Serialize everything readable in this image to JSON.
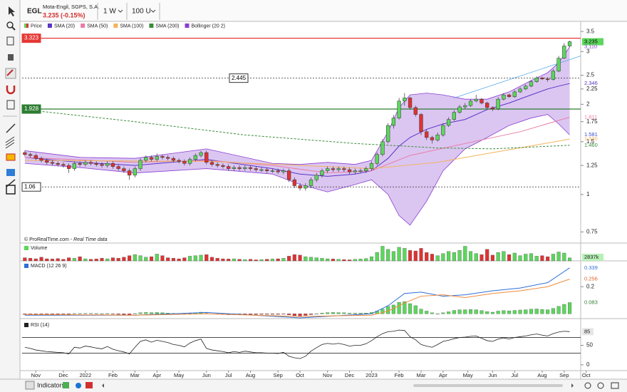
{
  "header": {
    "symbol": "EGL",
    "name": "Mota-Engil, SGPS, S.A.",
    "quote": "3.235 (-0.15%)",
    "period": "1 W",
    "units": "100 U"
  },
  "watermark": {
    "source": "© ProRealTime.com - ",
    "note": "Real Time data"
  },
  "toolbar": {
    "indicators": "Indicators"
  },
  "chart_data": {
    "type": "candlestick",
    "log_scale": true,
    "up_color": "#5cd65c",
    "down_color": "#e03232",
    "legend_price": "Price",
    "xlim": [
      -0.5,
      101
    ],
    "xticks": [
      {
        "value": 2,
        "label": "Nov"
      },
      {
        "value": 7,
        "label": "Dec"
      },
      {
        "value": 11,
        "label": "2022"
      },
      {
        "value": 16,
        "label": "Feb"
      },
      {
        "value": 20,
        "label": "Mar"
      },
      {
        "value": 24,
        "label": "Apr"
      },
      {
        "value": 28,
        "label": "May"
      },
      {
        "value": 33,
        "label": "Jun"
      },
      {
        "value": 37,
        "label": "Jul"
      },
      {
        "value": 41,
        "label": "Aug"
      },
      {
        "value": 46,
        "label": "Sep"
      },
      {
        "value": 50,
        "label": "Oct"
      },
      {
        "value": 55,
        "label": "Nov"
      },
      {
        "value": 59,
        "label": "Dec"
      },
      {
        "value": 63,
        "label": "2023"
      },
      {
        "value": 68,
        "label": "Feb"
      },
      {
        "value": 72,
        "label": "Mar"
      },
      {
        "value": 76,
        "label": "Apr"
      },
      {
        "value": 80.5,
        "label": "May"
      },
      {
        "value": 85,
        "label": "Jun"
      },
      {
        "value": 89,
        "label": "Jul"
      },
      {
        "value": 94,
        "label": "Aug"
      },
      {
        "value": 98,
        "label": "Sep"
      },
      {
        "value": 102,
        "label": "Oct"
      }
    ],
    "ylim": [
      0.7,
      3.66
    ],
    "yticks": [
      3.5,
      3,
      2.5,
      2.25,
      2,
      1.75,
      1.5,
      1.25,
      1,
      0.75
    ],
    "candles": [
      [
        1.38,
        1.4,
        1.34,
        1.36
      ],
      [
        1.36,
        1.38,
        1.33,
        1.35
      ],
      [
        1.35,
        1.37,
        1.3,
        1.32
      ],
      [
        1.32,
        1.34,
        1.28,
        1.3
      ],
      [
        1.3,
        1.32,
        1.26,
        1.28
      ],
      [
        1.28,
        1.3,
        1.25,
        1.27
      ],
      [
        1.27,
        1.29,
        1.24,
        1.26
      ],
      [
        1.26,
        1.28,
        1.23,
        1.25
      ],
      [
        1.25,
        1.27,
        1.18,
        1.22
      ],
      [
        1.22,
        1.29,
        1.2,
        1.27
      ],
      [
        1.27,
        1.29,
        1.24,
        1.26
      ],
      [
        1.26,
        1.3,
        1.24,
        1.28
      ],
      [
        1.28,
        1.3,
        1.25,
        1.27
      ],
      [
        1.27,
        1.29,
        1.24,
        1.26
      ],
      [
        1.26,
        1.28,
        1.23,
        1.25
      ],
      [
        1.25,
        1.29,
        1.23,
        1.27
      ],
      [
        1.27,
        1.29,
        1.22,
        1.24
      ],
      [
        1.24,
        1.26,
        1.2,
        1.22
      ],
      [
        1.22,
        1.24,
        1.18,
        1.2
      ],
      [
        1.2,
        1.22,
        1.12,
        1.16
      ],
      [
        1.16,
        1.24,
        1.14,
        1.22
      ],
      [
        1.22,
        1.32,
        1.2,
        1.3
      ],
      [
        1.3,
        1.35,
        1.28,
        1.33
      ],
      [
        1.33,
        1.35,
        1.29,
        1.31
      ],
      [
        1.31,
        1.37,
        1.29,
        1.34
      ],
      [
        1.34,
        1.36,
        1.31,
        1.33
      ],
      [
        1.33,
        1.35,
        1.3,
        1.32
      ],
      [
        1.32,
        1.34,
        1.28,
        1.3
      ],
      [
        1.3,
        1.32,
        1.27,
        1.29
      ],
      [
        1.29,
        1.31,
        1.25,
        1.27
      ],
      [
        1.27,
        1.33,
        1.25,
        1.31
      ],
      [
        1.31,
        1.37,
        1.29,
        1.35
      ],
      [
        1.35,
        1.4,
        1.33,
        1.38
      ],
      [
        1.38,
        1.4,
        1.26,
        1.28
      ],
      [
        1.28,
        1.3,
        1.24,
        1.26
      ],
      [
        1.26,
        1.28,
        1.23,
        1.25
      ],
      [
        1.25,
        1.27,
        1.22,
        1.24
      ],
      [
        1.24,
        1.26,
        1.2,
        1.22
      ],
      [
        1.22,
        1.25,
        1.2,
        1.23
      ],
      [
        1.23,
        1.25,
        1.2,
        1.22
      ],
      [
        1.22,
        1.25,
        1.2,
        1.23
      ],
      [
        1.23,
        1.25,
        1.2,
        1.22
      ],
      [
        1.22,
        1.24,
        1.19,
        1.21
      ],
      [
        1.21,
        1.23,
        1.19,
        1.21
      ],
      [
        1.21,
        1.23,
        1.18,
        1.2
      ],
      [
        1.2,
        1.22,
        1.18,
        1.2
      ],
      [
        1.2,
        1.22,
        1.17,
        1.19
      ],
      [
        1.19,
        1.22,
        1.17,
        1.2
      ],
      [
        1.2,
        1.22,
        1.1,
        1.12
      ],
      [
        1.12,
        1.14,
        1.05,
        1.07
      ],
      [
        1.07,
        1.09,
        1.03,
        1.05
      ],
      [
        1.05,
        1.09,
        1.03,
        1.07
      ],
      [
        1.07,
        1.14,
        1.05,
        1.12
      ],
      [
        1.12,
        1.18,
        1.1,
        1.16
      ],
      [
        1.16,
        1.22,
        1.14,
        1.2
      ],
      [
        1.2,
        1.24,
        1.18,
        1.22
      ],
      [
        1.22,
        1.24,
        1.19,
        1.21
      ],
      [
        1.21,
        1.24,
        1.19,
        1.22
      ],
      [
        1.22,
        1.24,
        1.19,
        1.21
      ],
      [
        1.21,
        1.23,
        1.17,
        1.19
      ],
      [
        1.19,
        1.22,
        1.17,
        1.2
      ],
      [
        1.2,
        1.22,
        1.18,
        1.2
      ],
      [
        1.2,
        1.24,
        1.18,
        1.22
      ],
      [
        1.22,
        1.29,
        1.2,
        1.27
      ],
      [
        1.27,
        1.38,
        1.25,
        1.36
      ],
      [
        1.36,
        1.53,
        1.34,
        1.5
      ],
      [
        1.5,
        1.73,
        1.48,
        1.7
      ],
      [
        1.7,
        1.84,
        1.66,
        1.8
      ],
      [
        1.8,
        2.1,
        1.78,
        2.05
      ],
      [
        2.05,
        2.18,
        1.98,
        2.1
      ],
      [
        2.1,
        2.12,
        1.92,
        1.95
      ],
      [
        1.95,
        1.98,
        1.82,
        1.85
      ],
      [
        1.85,
        1.87,
        1.58,
        1.62
      ],
      [
        1.62,
        1.65,
        1.52,
        1.55
      ],
      [
        1.55,
        1.57,
        1.48,
        1.52
      ],
      [
        1.52,
        1.61,
        1.5,
        1.58
      ],
      [
        1.58,
        1.73,
        1.56,
        1.7
      ],
      [
        1.7,
        1.81,
        1.68,
        1.78
      ],
      [
        1.78,
        1.91,
        1.76,
        1.88
      ],
      [
        1.88,
        1.99,
        1.86,
        1.96
      ],
      [
        1.96,
        2.02,
        1.93,
        1.98
      ],
      [
        1.98,
        2.08,
        1.96,
        2.05
      ],
      [
        2.05,
        2.15,
        2.03,
        2.08
      ],
      [
        2.08,
        2.1,
        2.0,
        2.02
      ],
      [
        2.02,
        2.04,
        1.93,
        1.95
      ],
      [
        1.95,
        1.97,
        1.9,
        1.93
      ],
      [
        1.93,
        2.11,
        1.91,
        2.08
      ],
      [
        2.08,
        2.18,
        2.06,
        2.15
      ],
      [
        2.15,
        2.17,
        2.1,
        2.12
      ],
      [
        2.12,
        2.23,
        2.1,
        2.2
      ],
      [
        2.2,
        2.28,
        2.18,
        2.25
      ],
      [
        2.25,
        2.33,
        2.23,
        2.3
      ],
      [
        2.3,
        2.41,
        2.28,
        2.38
      ],
      [
        2.38,
        2.48,
        2.36,
        2.45
      ],
      [
        2.45,
        2.47,
        2.41,
        2.43
      ],
      [
        2.43,
        2.46,
        2.38,
        2.42
      ],
      [
        2.42,
        2.62,
        2.4,
        2.58
      ],
      [
        2.58,
        2.9,
        2.56,
        2.85
      ],
      [
        2.85,
        3.2,
        2.83,
        3.13
      ],
      [
        3.13,
        3.26,
        3.1,
        3.235
      ]
    ],
    "levels": [
      {
        "value": 3.323,
        "color": "#e53935",
        "dashed": false
      },
      {
        "value": 2.445,
        "color": "#333333",
        "dashed": true
      },
      {
        "value": 1.928,
        "color": "#2e7d32",
        "dashed": false
      },
      {
        "value": 1.06,
        "color": "#333333",
        "dashed": true
      }
    ],
    "overlays": [
      {
        "name": "SMA (20)",
        "color": "#5a34c8",
        "x": [
          0,
          10,
          20,
          33,
          45,
          50,
          55,
          60,
          63,
          66,
          68,
          70,
          73,
          76,
          80,
          84,
          88,
          92,
          95,
          97,
          99
        ],
        "values": [
          1.33,
          1.28,
          1.25,
          1.31,
          1.22,
          1.17,
          1.15,
          1.17,
          1.2,
          1.32,
          1.45,
          1.55,
          1.65,
          1.72,
          1.78,
          1.92,
          2.02,
          2.15,
          2.25,
          2.3,
          2.346
        ]
      },
      {
        "name": "SMA (50)",
        "color": "#e87da6",
        "x": [
          0,
          20,
          33,
          45,
          55,
          63,
          70,
          80,
          90,
          99
        ],
        "values": [
          1.33,
          1.28,
          1.3,
          1.25,
          1.18,
          1.2,
          1.35,
          1.48,
          1.62,
          1.811
        ]
      },
      {
        "name": "SMA (100)",
        "color": "#f2b45c",
        "x": [
          0,
          33,
          50,
          63,
          75,
          85,
          99
        ],
        "values": [
          1.3,
          1.29,
          1.25,
          1.22,
          1.28,
          1.38,
          1.53
        ],
        "end_label": "1.530"
      },
      {
        "name": "SMA (200)",
        "color": "#3d8b3d",
        "dashed": true,
        "x": [
          0,
          20,
          40,
          60,
          75,
          85,
          99
        ],
        "values": [
          1.92,
          1.75,
          1.58,
          1.48,
          1.43,
          1.42,
          1.46
        ],
        "end_label": "1.460"
      }
    ],
    "bollinger": {
      "name": "Bollinger (20 2)",
      "color": "#8a3fd0",
      "fill": "rgba(176,128,224,0.45)",
      "x": [
        0,
        10,
        20,
        33,
        45,
        50,
        55,
        60,
        63,
        66,
        68,
        70,
        73,
        76,
        80,
        84,
        88,
        92,
        95,
        97,
        99
      ],
      "upper": [
        1.4,
        1.33,
        1.32,
        1.42,
        1.27,
        1.26,
        1.28,
        1.26,
        1.3,
        1.62,
        1.95,
        2.15,
        2.18,
        2.15,
        2.08,
        2.08,
        2.2,
        2.4,
        2.55,
        2.75,
        3.11
      ],
      "lower": [
        1.27,
        1.23,
        1.18,
        1.22,
        1.17,
        1.08,
        1.02,
        1.08,
        1.12,
        1.0,
        0.85,
        0.79,
        0.95,
        1.2,
        1.42,
        1.55,
        1.7,
        1.8,
        1.85,
        1.72,
        1.581
      ],
      "upper_end_label": "3.110"
    },
    "trendline": {
      "color": "#5aa9e6",
      "x": [
        78,
        101
      ],
      "values": [
        2.1,
        2.9
      ]
    },
    "volume": {
      "title": "Volume",
      "ylim": [
        0,
        15000
      ],
      "values": [
        3000,
        2500,
        2000,
        3500,
        2000,
        1800,
        2200,
        1500,
        3000,
        2500,
        4000,
        2000,
        1500,
        1800,
        2500,
        2000,
        3000,
        2500,
        3500,
        5000,
        6000,
        5000,
        3500,
        4000,
        6500,
        5000,
        3000,
        2500,
        2000,
        3000,
        4500,
        5000,
        5500,
        6000,
        3500,
        2500,
        2000,
        1800,
        2000,
        1500,
        1200,
        1500,
        1000,
        1200,
        1500,
        1800,
        2000,
        2500,
        4500,
        6000,
        5500,
        4000,
        3500,
        3000,
        2500,
        2000,
        1800,
        1500,
        1200,
        1000,
        1500,
        1800,
        2200,
        4000,
        8000,
        14000,
        11000,
        9000,
        13000,
        12000,
        10000,
        9500,
        12000,
        8000,
        6500,
        5000,
        7000,
        9000,
        8000,
        10000,
        14000,
        9000,
        7000,
        6000,
        11000,
        5500,
        8000,
        9000,
        6000,
        7500,
        5000,
        6500,
        7000,
        4500,
        5000,
        4000,
        6500,
        8500,
        7500,
        2837
      ],
      "end_label": "2837k"
    },
    "macd": {
      "title": "MACD (12 26 9)",
      "ylim": [
        -0.03,
        0.38
      ],
      "yticks": [
        0.2
      ],
      "line": {
        "color": "#2e6fd8",
        "x": [
          0,
          20,
          33,
          50,
          63,
          66,
          69,
          72,
          76,
          80,
          85,
          90,
          95,
          99
        ],
        "values": [
          -0.01,
          -0.01,
          0.01,
          -0.03,
          0.0,
          0.06,
          0.15,
          0.16,
          0.13,
          0.14,
          0.17,
          0.19,
          0.23,
          0.339
        ]
      },
      "signal": {
        "color": "#f08a3c",
        "x": [
          0,
          20,
          33,
          50,
          63,
          66,
          69,
          72,
          76,
          80,
          85,
          90,
          95,
          99
        ],
        "values": [
          -0.005,
          -0.01,
          0.0,
          -0.02,
          -0.01,
          0.02,
          0.08,
          0.13,
          0.14,
          0.12,
          0.15,
          0.17,
          0.2,
          0.256
        ]
      },
      "histogram": [
        -0.005,
        -0.006,
        -0.007,
        -0.006,
        -0.005,
        -0.004,
        -0.004,
        -0.003,
        -0.004,
        0.002,
        0.002,
        0.003,
        0.003,
        0.002,
        0.001,
        0.002,
        -0.002,
        -0.004,
        -0.006,
        -0.008,
        0.002,
        0.008,
        0.01,
        0.009,
        0.01,
        0.008,
        0.006,
        0.004,
        0.002,
        0.0,
        0.004,
        0.008,
        0.012,
        0.004,
        0.0,
        -0.003,
        -0.005,
        -0.007,
        -0.006,
        -0.006,
        -0.005,
        -0.005,
        -0.005,
        -0.004,
        -0.004,
        -0.004,
        -0.004,
        -0.003,
        -0.008,
        -0.014,
        -0.016,
        -0.012,
        -0.006,
        0.0,
        0.006,
        0.009,
        0.01,
        0.009,
        0.008,
        0.005,
        0.005,
        0.005,
        0.006,
        0.01,
        0.02,
        0.035,
        0.055,
        0.065,
        0.085,
        0.09,
        0.075,
        0.06,
        0.035,
        0.02,
        0.008,
        0.0,
        0.008,
        0.015,
        0.025,
        0.03,
        0.03,
        0.032,
        0.03,
        0.024,
        0.016,
        0.012,
        0.02,
        0.024,
        0.022,
        0.025,
        0.028,
        0.03,
        0.034,
        0.036,
        0.032,
        0.03,
        0.04,
        0.055,
        0.07,
        0.083
      ]
    },
    "rsi": {
      "title": "RSI (14)",
      "ylim": [
        -13,
        113
      ],
      "yticks": [
        50,
        0
      ],
      "levels": [
        70,
        30
      ],
      "values": [
        45,
        42,
        38,
        36,
        34,
        33,
        32,
        31,
        28,
        45,
        43,
        48,
        46,
        43,
        41,
        47,
        40,
        36,
        33,
        28,
        45,
        60,
        64,
        58,
        63,
        60,
        57,
        52,
        50,
        46,
        56,
        62,
        66,
        42,
        38,
        36,
        34,
        31,
        34,
        32,
        35,
        33,
        31,
        31,
        30,
        30,
        29,
        32,
        22,
        18,
        16,
        22,
        35,
        44,
        52,
        55,
        53,
        55,
        52,
        48,
        50,
        50,
        54,
        62,
        72,
        80,
        85,
        86,
        89,
        88,
        72,
        64,
        52,
        48,
        45,
        52,
        60,
        63,
        67,
        70,
        71,
        73,
        74,
        68,
        62,
        60,
        66,
        69,
        66,
        70,
        72,
        74,
        77,
        79,
        76,
        74,
        80,
        84,
        86,
        85
      ]
    }
  }
}
